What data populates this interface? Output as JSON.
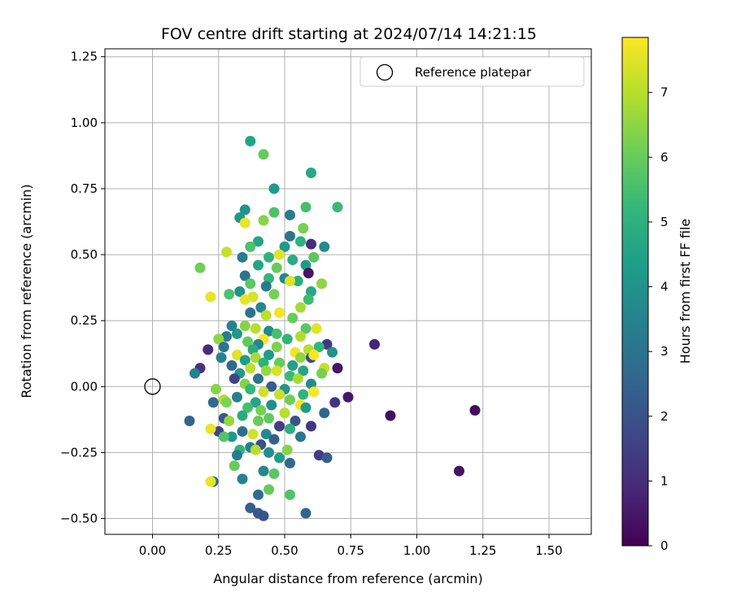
{
  "chart_data": {
    "type": "scatter",
    "title": "FOV centre drift starting at 2024/07/14 14:21:15",
    "xlabel": "Angular distance from reference (arcmin)",
    "ylabel": "Rotation from reference (arcmin)",
    "xlim": [
      -0.18,
      1.66
    ],
    "ylim": [
      -0.56,
      1.28
    ],
    "xticks": [
      0.0,
      0.25,
      0.5,
      0.75,
      1.0,
      1.25,
      1.5
    ],
    "xtick_labels": [
      "0.00",
      "0.25",
      "0.50",
      "0.75",
      "1.00",
      "1.25",
      "1.50"
    ],
    "yticks": [
      -0.5,
      -0.25,
      0.0,
      0.25,
      0.5,
      0.75,
      1.0,
      1.25
    ],
    "ytick_labels": [
      "−0.50",
      "−0.25",
      "0.00",
      "0.25",
      "0.50",
      "0.75",
      "1.00",
      "1.25"
    ],
    "grid": true,
    "legend": {
      "position": "top-right",
      "entries": [
        "Reference platepar"
      ]
    },
    "reference_point": {
      "x": 0.0,
      "y": 0.0,
      "label": "Reference platepar"
    },
    "colorbar": {
      "label": "Hours from first FF file",
      "colormap": "viridis",
      "range": [
        0,
        7.85
      ],
      "ticks": [
        0,
        1,
        2,
        3,
        4,
        5,
        6,
        7
      ],
      "tick_labels": [
        "0",
        "1",
        "2",
        "3",
        "4",
        "5",
        "6",
        "7"
      ]
    },
    "points": [
      [
        0.37,
        0.93,
        4.5
      ],
      [
        0.42,
        0.88,
        6.0
      ],
      [
        0.6,
        0.81,
        4.7
      ],
      [
        0.46,
        0.75,
        4.2
      ],
      [
        0.7,
        0.68,
        5.3
      ],
      [
        0.58,
        0.68,
        5.5
      ],
      [
        0.35,
        0.67,
        4.0
      ],
      [
        0.46,
        0.66,
        5.6
      ],
      [
        0.52,
        0.65,
        3.3
      ],
      [
        0.33,
        0.64,
        4.1
      ],
      [
        0.35,
        0.62,
        7.6
      ],
      [
        0.42,
        0.63,
        6.4
      ],
      [
        0.57,
        0.6,
        6.2
      ],
      [
        0.4,
        0.55,
        4.6
      ],
      [
        0.56,
        0.55,
        5.0
      ],
      [
        0.52,
        0.57,
        3.1
      ],
      [
        0.6,
        0.54,
        1.0
      ],
      [
        0.5,
        0.53,
        4.2
      ],
      [
        0.37,
        0.53,
        5.6
      ],
      [
        0.65,
        0.53,
        3.8
      ],
      [
        0.28,
        0.51,
        7.2
      ],
      [
        0.48,
        0.5,
        7.5
      ],
      [
        0.34,
        0.49,
        3.3
      ],
      [
        0.44,
        0.49,
        5.1
      ],
      [
        0.53,
        0.48,
        4.8
      ],
      [
        0.61,
        0.49,
        5.8
      ],
      [
        0.58,
        0.46,
        4.3
      ],
      [
        0.4,
        0.46,
        4.6
      ],
      [
        0.47,
        0.45,
        6.0
      ],
      [
        0.18,
        0.45,
        6.1
      ],
      [
        0.35,
        0.42,
        3.0
      ],
      [
        0.59,
        0.43,
        0.4
      ],
      [
        0.44,
        0.41,
        5.2
      ],
      [
        0.5,
        0.41,
        3.6
      ],
      [
        0.64,
        0.39,
        6.5
      ],
      [
        0.55,
        0.4,
        4.9
      ],
      [
        0.37,
        0.39,
        5.8
      ],
      [
        0.52,
        0.4,
        7.5
      ],
      [
        0.43,
        0.38,
        3.2
      ],
      [
        0.6,
        0.36,
        4.7
      ],
      [
        0.33,
        0.36,
        4.0
      ],
      [
        0.46,
        0.35,
        6.2
      ],
      [
        0.38,
        0.34,
        7.4
      ],
      [
        0.22,
        0.34,
        7.6
      ],
      [
        0.29,
        0.35,
        5.6
      ],
      [
        0.59,
        0.33,
        5.4
      ],
      [
        0.35,
        0.33,
        7.6
      ],
      [
        0.41,
        0.3,
        3.6
      ],
      [
        0.56,
        0.3,
        6.8
      ],
      [
        0.37,
        0.28,
        3.0
      ],
      [
        0.48,
        0.28,
        7.7
      ],
      [
        0.43,
        0.27,
        7.1
      ],
      [
        0.53,
        0.26,
        6.0
      ],
      [
        0.3,
        0.23,
        3.5
      ],
      [
        0.35,
        0.23,
        6.4
      ],
      [
        0.39,
        0.22,
        7.0
      ],
      [
        0.58,
        0.22,
        5.8
      ],
      [
        0.62,
        0.22,
        7.5
      ],
      [
        0.44,
        0.21,
        3.7
      ],
      [
        0.47,
        0.2,
        5.5
      ],
      [
        0.32,
        0.2,
        4.2
      ],
      [
        0.28,
        0.19,
        3.3
      ],
      [
        0.56,
        0.19,
        6.9
      ],
      [
        0.25,
        0.18,
        6.5
      ],
      [
        0.42,
        0.18,
        7.8
      ],
      [
        0.51,
        0.18,
        5.1
      ],
      [
        0.36,
        0.17,
        5.9
      ],
      [
        0.66,
        0.16,
        1.3
      ],
      [
        0.4,
        0.16,
        3.6
      ],
      [
        0.59,
        0.14,
        7.0
      ],
      [
        0.27,
        0.15,
        3.0
      ],
      [
        0.63,
        0.15,
        5.2
      ],
      [
        0.47,
        0.15,
        6.3
      ],
      [
        0.38,
        0.14,
        4.8
      ],
      [
        0.21,
        0.14,
        1.0
      ],
      [
        0.54,
        0.13,
        7.7
      ],
      [
        0.32,
        0.12,
        7.5
      ],
      [
        0.44,
        0.12,
        4.3
      ],
      [
        0.68,
        0.13,
        4.0
      ],
      [
        0.56,
        0.11,
        6.5
      ],
      [
        0.26,
        0.11,
        3.5
      ],
      [
        0.6,
        0.11,
        1.8
      ],
      [
        0.39,
        0.11,
        6.8
      ],
      [
        0.61,
        0.12,
        7.8
      ],
      [
        0.35,
        0.1,
        4.3
      ],
      [
        0.48,
        0.09,
        6.0
      ],
      [
        0.42,
        0.09,
        5.0
      ],
      [
        0.53,
        0.08,
        4.5
      ],
      [
        0.3,
        0.08,
        2.8
      ],
      [
        0.18,
        0.07,
        1.2
      ],
      [
        0.37,
        0.07,
        7.1
      ],
      [
        0.7,
        0.07,
        0.4
      ],
      [
        0.65,
        0.07,
        7.2
      ],
      [
        0.57,
        0.06,
        4.6
      ],
      [
        0.43,
        0.06,
        6.6
      ],
      [
        0.33,
        0.05,
        4.2
      ],
      [
        0.47,
        0.06,
        7.4
      ],
      [
        0.16,
        0.05,
        3.5
      ],
      [
        0.52,
        0.04,
        5.3
      ],
      [
        0.64,
        0.05,
        6.2
      ],
      [
        0.4,
        0.03,
        3.0
      ],
      [
        0.31,
        0.03,
        1.6
      ],
      [
        0.55,
        0.03,
        6.8
      ],
      [
        0.35,
        0.01,
        6.4
      ],
      [
        0.6,
        0.01,
        3.8
      ],
      [
        0.45,
        0.0,
        2.3
      ],
      [
        0.5,
        -0.01,
        4.1
      ],
      [
        0.37,
        -0.01,
        5.2
      ],
      [
        0.24,
        -0.01,
        6.4
      ],
      [
        0.42,
        -0.02,
        7.3
      ],
      [
        0.61,
        -0.02,
        7.8
      ],
      [
        0.57,
        -0.03,
        5.1
      ],
      [
        0.48,
        -0.03,
        7.2
      ],
      [
        0.32,
        -0.04,
        3.4
      ],
      [
        0.27,
        -0.05,
        7.0
      ],
      [
        0.52,
        -0.05,
        6.1
      ],
      [
        0.74,
        -0.04,
        0.5
      ],
      [
        0.39,
        -0.06,
        4.6
      ],
      [
        0.69,
        -0.06,
        1.2
      ],
      [
        0.56,
        -0.07,
        7.7
      ],
      [
        0.28,
        -0.06,
        6.3
      ],
      [
        0.45,
        -0.07,
        3.9
      ],
      [
        0.23,
        -0.06,
        2.7
      ],
      [
        0.36,
        -0.08,
        5.5
      ],
      [
        0.58,
        -0.08,
        4.2
      ],
      [
        0.41,
        -0.09,
        6.2
      ],
      [
        0.5,
        -0.1,
        7.0
      ],
      [
        0.65,
        -0.1,
        2.6
      ],
      [
        0.34,
        -0.11,
        4.8
      ],
      [
        0.27,
        -0.12,
        2.2
      ],
      [
        0.44,
        -0.12,
        5.9
      ],
      [
        0.14,
        -0.13,
        2.5
      ],
      [
        0.54,
        -0.13,
        2.0
      ],
      [
        0.29,
        -0.13,
        6.6
      ],
      [
        0.4,
        -0.13,
        6.0
      ],
      [
        0.6,
        -0.15,
        1.3
      ],
      [
        0.48,
        -0.15,
        1.5
      ],
      [
        0.34,
        -0.17,
        2.9
      ],
      [
        0.25,
        -0.17,
        1.6
      ],
      [
        0.52,
        -0.16,
        4.9
      ],
      [
        0.43,
        -0.18,
        3.7
      ],
      [
        0.38,
        -0.18,
        7.3
      ],
      [
        0.22,
        -0.16,
        7.6
      ],
      [
        0.3,
        -0.19,
        4.2
      ],
      [
        0.56,
        -0.19,
        3.1
      ],
      [
        0.46,
        -0.2,
        2.4
      ],
      [
        0.27,
        -0.19,
        5.7
      ],
      [
        0.41,
        -0.22,
        2.0
      ],
      [
        0.37,
        -0.23,
        3.4
      ],
      [
        0.51,
        -0.24,
        6.4
      ],
      [
        0.33,
        -0.24,
        5.1
      ],
      [
        0.44,
        -0.25,
        3.8
      ],
      [
        0.39,
        -0.24,
        7.0
      ],
      [
        0.63,
        -0.26,
        1.4
      ],
      [
        0.32,
        -0.26,
        3.3
      ],
      [
        0.48,
        -0.27,
        4.4
      ],
      [
        0.66,
        -0.27,
        2.3
      ],
      [
        0.31,
        -0.3,
        6.0
      ],
      [
        0.52,
        -0.29,
        2.7
      ],
      [
        0.42,
        -0.32,
        3.6
      ],
      [
        0.46,
        -0.33,
        5.8
      ],
      [
        0.34,
        -0.35,
        3.5
      ],
      [
        0.23,
        -0.36,
        2.8
      ],
      [
        0.22,
        -0.36,
        7.6
      ],
      [
        0.44,
        -0.39,
        6.0
      ],
      [
        0.4,
        -0.41,
        2.8
      ],
      [
        0.52,
        -0.41,
        5.7
      ],
      [
        0.37,
        -0.46,
        2.4
      ],
      [
        0.4,
        -0.48,
        2.2
      ],
      [
        0.42,
        -0.49,
        2.0
      ],
      [
        0.58,
        -0.48,
        2.5
      ],
      [
        0.84,
        0.16,
        0.8
      ],
      [
        0.9,
        -0.11,
        0.3
      ],
      [
        1.22,
        -0.09,
        0.2
      ],
      [
        1.16,
        -0.32,
        0.4
      ]
    ]
  }
}
